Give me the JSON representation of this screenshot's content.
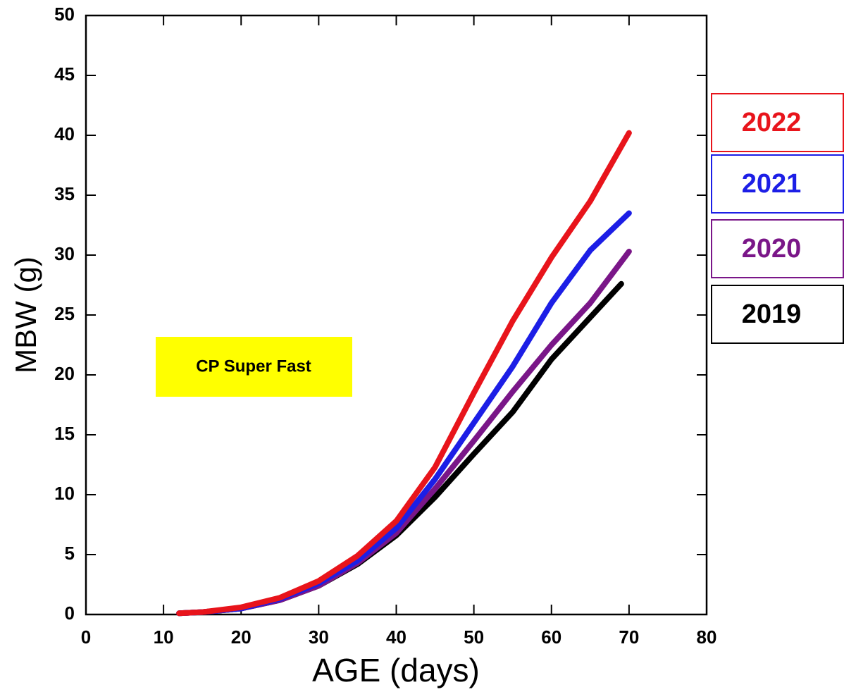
{
  "chart_data": {
    "type": "line",
    "x_label": "AGE (days)",
    "y_label": "MBW (g)",
    "annotation": "CP Super Fast",
    "xlim": [
      0,
      80
    ],
    "xticks": [
      0,
      10,
      20,
      30,
      40,
      50,
      60,
      70,
      80
    ],
    "ylim": [
      0,
      50
    ],
    "yticks": [
      0,
      5,
      10,
      15,
      20,
      25,
      30,
      35,
      40,
      45,
      50
    ],
    "series": [
      {
        "name": "2022",
        "color": "#e8141b",
        "x": [
          12,
          15,
          20,
          25,
          30,
          35,
          40,
          45,
          50,
          55,
          60,
          65,
          70
        ],
        "values": [
          0.1,
          0.2,
          0.6,
          1.4,
          2.8,
          4.9,
          7.8,
          12.3,
          18.5,
          24.5,
          29.8,
          34.5,
          40.2
        ]
      },
      {
        "name": "2021",
        "color": "#1c1ee6",
        "x": [
          12,
          15,
          20,
          25,
          30,
          35,
          40,
          45,
          50,
          55,
          60,
          65,
          70
        ],
        "values": [
          0.1,
          0.2,
          0.5,
          1.3,
          2.6,
          4.5,
          7.2,
          11.3,
          16.0,
          20.7,
          26.0,
          30.4,
          33.5
        ]
      },
      {
        "name": "2020",
        "color": "#7a1688",
        "x": [
          12,
          15,
          20,
          25,
          30,
          35,
          40,
          45,
          50,
          55,
          60,
          65,
          70
        ],
        "values": [
          0.1,
          0.2,
          0.5,
          1.2,
          2.4,
          4.3,
          6.8,
          10.5,
          14.5,
          18.6,
          22.5,
          26.0,
          30.3
        ]
      },
      {
        "name": "2019",
        "color": "#000000",
        "x": [
          12,
          15,
          20,
          25,
          30,
          35,
          40,
          45,
          50,
          55,
          60,
          65,
          69
        ],
        "values": [
          0.1,
          0.2,
          0.5,
          1.2,
          2.4,
          4.2,
          6.6,
          9.8,
          13.4,
          16.9,
          21.3,
          24.8,
          27.6
        ]
      }
    ]
  }
}
